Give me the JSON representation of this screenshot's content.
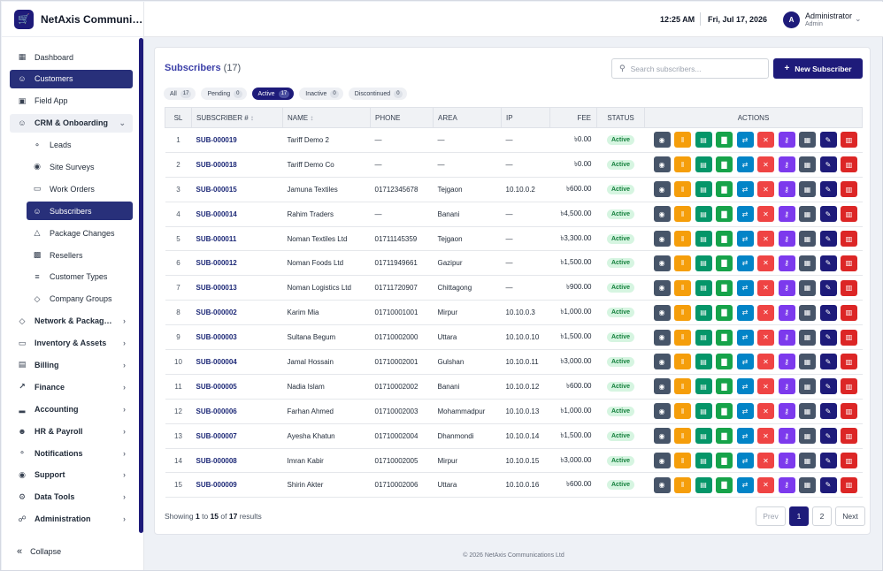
{
  "brand": {
    "name": "NetAxis Communi…"
  },
  "header": {
    "time": "12:25 AM",
    "date": "Fri, Jul 17, 2026",
    "avatar_letter": "A",
    "user_name": "Administrator",
    "user_role": "Admin"
  },
  "sidebar": {
    "items": [
      {
        "label": "Dashboard",
        "icon": "grid-icon"
      },
      {
        "label": "Customers",
        "icon": "users-icon"
      },
      {
        "label": "Field App",
        "icon": "building-icon"
      },
      {
        "label": "CRM & Onboarding",
        "icon": "users-icon"
      },
      {
        "label": "Leads",
        "icon": "bell-icon"
      },
      {
        "label": "Site Surveys",
        "icon": "eye-icon"
      },
      {
        "label": "Work Orders",
        "icon": "folder-icon"
      },
      {
        "label": "Subscribers",
        "icon": "users-icon"
      },
      {
        "label": "Package Changes",
        "icon": "flask-icon"
      },
      {
        "label": "Resellers",
        "icon": "truck-icon"
      },
      {
        "label": "Customer Types",
        "icon": "list-icon"
      },
      {
        "label": "Company Groups",
        "icon": "tag-icon"
      },
      {
        "label": "Network & Packag…",
        "icon": "tag-icon"
      },
      {
        "label": "Inventory & Assets",
        "icon": "folder-icon"
      },
      {
        "label": "Billing",
        "icon": "billing-icon"
      },
      {
        "label": "Finance",
        "icon": "trend-icon"
      },
      {
        "label": "Accounting",
        "icon": "bar-chart-icon"
      },
      {
        "label": "HR & Payroll",
        "icon": "person-icon"
      },
      {
        "label": "Notifications",
        "icon": "bell-icon"
      },
      {
        "label": "Support",
        "icon": "eye-icon"
      },
      {
        "label": "Data Tools",
        "icon": "gear-icon"
      },
      {
        "label": "Administration",
        "icon": "lock-icon"
      }
    ],
    "collapse_label": "Collapse"
  },
  "main": {
    "title": "Subscribers",
    "title_count": "(17)",
    "search_placeholder": "Search subscribers...",
    "new_button": "New Subscriber",
    "tabs": [
      {
        "label": "All",
        "count": "17"
      },
      {
        "label": "Pending",
        "count": "0"
      },
      {
        "label": "Active",
        "count": "17"
      },
      {
        "label": "Inactive",
        "count": "0"
      },
      {
        "label": "Discontinued",
        "count": "0"
      }
    ],
    "columns": [
      "SL",
      "SUBSCRIBER #",
      "NAME",
      "PHONE",
      "AREA",
      "IP",
      "FEE",
      "STATUS",
      "ACTIONS"
    ],
    "sort_indicator": "↕",
    "rows": [
      {
        "sl": "1",
        "sub": "SUB-000019",
        "name": "Tariff Demo 2",
        "phone": "—",
        "area": "—",
        "ip": "—",
        "fee": "৳0.00",
        "status": "Active"
      },
      {
        "sl": "2",
        "sub": "SUB-000018",
        "name": "Tariff Demo Co",
        "phone": "—",
        "area": "—",
        "ip": "—",
        "fee": "৳0.00",
        "status": "Active"
      },
      {
        "sl": "3",
        "sub": "SUB-000015",
        "name": "Jamuna Textiles",
        "phone": "01712345678",
        "area": "Tejgaon",
        "ip": "10.10.0.2",
        "fee": "৳600.00",
        "status": "Active"
      },
      {
        "sl": "4",
        "sub": "SUB-000014",
        "name": "Rahim Traders",
        "phone": "—",
        "area": "Banani",
        "ip": "—",
        "fee": "৳4,500.00",
        "status": "Active"
      },
      {
        "sl": "5",
        "sub": "SUB-000011",
        "name": "Noman Textiles Ltd",
        "phone": "01711145359",
        "area": "Tejgaon",
        "ip": "—",
        "fee": "৳3,300.00",
        "status": "Active"
      },
      {
        "sl": "6",
        "sub": "SUB-000012",
        "name": "Noman Foods Ltd",
        "phone": "01711949661",
        "area": "Gazipur",
        "ip": "—",
        "fee": "৳1,500.00",
        "status": "Active"
      },
      {
        "sl": "7",
        "sub": "SUB-000013",
        "name": "Noman Logistics Ltd",
        "phone": "01711720907",
        "area": "Chittagong",
        "ip": "—",
        "fee": "৳900.00",
        "status": "Active"
      },
      {
        "sl": "8",
        "sub": "SUB-000002",
        "name": "Karim Mia",
        "phone": "01710001001",
        "area": "Mirpur",
        "ip": "10.10.0.3",
        "fee": "৳1,000.00",
        "status": "Active"
      },
      {
        "sl": "9",
        "sub": "SUB-000003",
        "name": "Sultana Begum",
        "phone": "01710002000",
        "area": "Uttara",
        "ip": "10.10.0.10",
        "fee": "৳1,500.00",
        "status": "Active"
      },
      {
        "sl": "10",
        "sub": "SUB-000004",
        "name": "Jamal Hossain",
        "phone": "01710002001",
        "area": "Gulshan",
        "ip": "10.10.0.11",
        "fee": "৳3,000.00",
        "status": "Active"
      },
      {
        "sl": "11",
        "sub": "SUB-000005",
        "name": "Nadia Islam",
        "phone": "01710002002",
        "area": "Banani",
        "ip": "10.10.0.12",
        "fee": "৳600.00",
        "status": "Active"
      },
      {
        "sl": "12",
        "sub": "SUB-000006",
        "name": "Farhan Ahmed",
        "phone": "01710002003",
        "area": "Mohammadpur",
        "ip": "10.10.0.13",
        "fee": "৳1,000.00",
        "status": "Active"
      },
      {
        "sl": "13",
        "sub": "SUB-000007",
        "name": "Ayesha Khatun",
        "phone": "01710002004",
        "area": "Dhanmondi",
        "ip": "10.10.0.14",
        "fee": "৳1,500.00",
        "status": "Active"
      },
      {
        "sl": "14",
        "sub": "SUB-000008",
        "name": "Imran Kabir",
        "phone": "01710002005",
        "area": "Mirpur",
        "ip": "10.10.0.15",
        "fee": "৳3,000.00",
        "status": "Active"
      },
      {
        "sl": "15",
        "sub": "SUB-000009",
        "name": "Shirin Akter",
        "phone": "01710002006",
        "area": "Uttara",
        "ip": "10.10.0.16",
        "fee": "৳600.00",
        "status": "Active"
      }
    ],
    "actions": [
      {
        "name": "view-button",
        "icon": "eye-icon",
        "glyph": "◉",
        "cls": "a-view"
      },
      {
        "name": "pause-button",
        "icon": "pause-icon",
        "glyph": "‖",
        "cls": "a-pause"
      },
      {
        "name": "billing-button",
        "icon": "card-icon",
        "glyph": "▤",
        "cls": "a-card"
      },
      {
        "name": "stats-button",
        "icon": "bar-chart-icon",
        "glyph": "▇",
        "cls": "a-stat"
      },
      {
        "name": "change-package-button",
        "icon": "swap-icon",
        "glyph": "⇄",
        "cls": "a-swap"
      },
      {
        "name": "disconnect-button",
        "icon": "close-icon",
        "glyph": "✕",
        "cls": "a-x"
      },
      {
        "name": "credentials-button",
        "icon": "key-icon",
        "glyph": "⚷",
        "cls": "a-key"
      },
      {
        "name": "document-button",
        "icon": "document-icon",
        "glyph": "▦",
        "cls": "a-doc"
      },
      {
        "name": "edit-button",
        "icon": "pencil-icon",
        "glyph": "✎",
        "cls": "a-edit"
      },
      {
        "name": "delete-button",
        "icon": "trash-icon",
        "glyph": "▥",
        "cls": "a-del"
      }
    ],
    "footer_info": {
      "prefix": "Showing",
      "from": "1",
      "to_word": "to",
      "to": "15",
      "of_word": "of",
      "total": "17",
      "suffix": "results"
    },
    "pager": {
      "prev": "Prev",
      "pages": [
        "1",
        "2"
      ],
      "current": "1",
      "next": "Next"
    }
  },
  "footer": {
    "text": "© 2026 NetAxis Communications Ltd"
  },
  "colors": {
    "primary": "#1e1b7a",
    "active_badge_bg": "#d6f5e1",
    "active_badge_fg": "#15803d"
  }
}
